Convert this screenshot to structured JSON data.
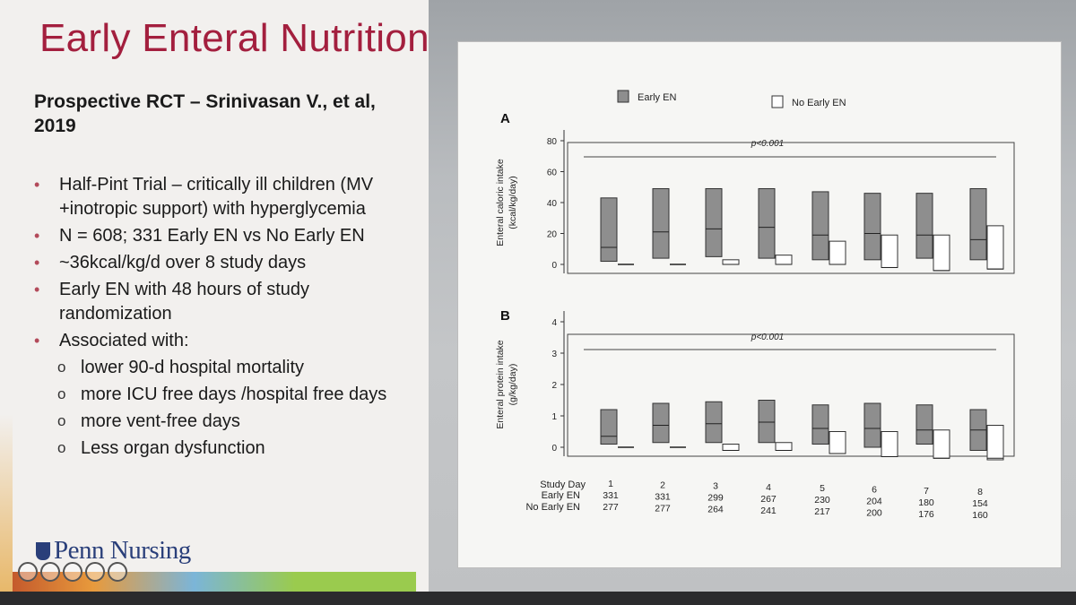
{
  "slide": {
    "title": "Early Enteral Nutrition",
    "subtitle": "Prospective RCT – Srinivasan V., et al, 2019",
    "bullets": [
      "Half-Pint Trial – critically ill children (MV +inotropic support) with hyperglycemia",
      "N = 608; 331 Early EN vs No Early EN",
      "~36kcal/kg/d over 8 study days",
      "Early EN with 48 hours of study randomization",
      "Associated with:"
    ],
    "sub_bullets": [
      "lower 90-d hospital mortality",
      "more ICU free days /hospital free days",
      "more vent-free days",
      "Less organ dysfunction"
    ],
    "logo": "Penn Nursing"
  },
  "colors": {
    "title": "#a31f3e",
    "early_box": "#8e8e8e",
    "no_early_box": "#ffffff",
    "logo": "#2a3f7a"
  },
  "chart_data": [
    {
      "type": "box",
      "panel": "A",
      "ylabel": "Enteral caloric intake (kcal/kg/day)",
      "ylim": [
        0,
        80
      ],
      "yticks": [
        "0",
        "20",
        "40",
        "60",
        "80"
      ],
      "annotation": "p<0.001",
      "legend": [
        "Early EN",
        "No Early EN"
      ],
      "categories": [
        "1",
        "2",
        "3",
        "4",
        "5",
        "6",
        "7",
        "8"
      ],
      "series": [
        {
          "name": "Early EN",
          "q1": [
            2,
            4,
            5,
            4,
            3,
            3,
            4,
            3
          ],
          "median": [
            11,
            21,
            23,
            24,
            19,
            20,
            19,
            16
          ],
          "q3": [
            43,
            49,
            49,
            49,
            47,
            46,
            46,
            49
          ]
        },
        {
          "name": "No Early EN",
          "q1": [
            0,
            0,
            0,
            0,
            0,
            -2,
            -4,
            -3
          ],
          "median": [
            0,
            0,
            0,
            0,
            0,
            -2,
            -4,
            -3
          ],
          "q3": [
            0,
            0,
            3,
            6,
            15,
            19,
            19,
            25
          ]
        }
      ]
    },
    {
      "type": "box",
      "panel": "B",
      "ylabel": "Enteral protein intake (g/kg/day)",
      "ylim": [
        0,
        4
      ],
      "yticks": [
        "0",
        "1",
        "2",
        "3",
        "4"
      ],
      "annotation": "p<0.001",
      "categories": [
        "1",
        "2",
        "3",
        "4",
        "5",
        "6",
        "7",
        "8"
      ],
      "series": [
        {
          "name": "Early EN",
          "q1": [
            0.1,
            0.15,
            0.15,
            0.15,
            0.1,
            0.0,
            0.1,
            -0.1
          ],
          "median": [
            0.35,
            0.7,
            0.75,
            0.8,
            0.6,
            0.6,
            0.55,
            0.55
          ],
          "q3": [
            1.2,
            1.4,
            1.45,
            1.5,
            1.35,
            1.4,
            1.35,
            1.2
          ]
        },
        {
          "name": "No Early EN",
          "q1": [
            0,
            0,
            -0.1,
            -0.1,
            -0.2,
            -0.3,
            -0.35,
            -0.4
          ],
          "median": [
            0,
            0,
            -0.1,
            -0.1,
            -0.2,
            -0.3,
            -0.35,
            -0.35
          ],
          "q3": [
            0,
            0,
            0.1,
            0.15,
            0.5,
            0.5,
            0.55,
            0.7
          ]
        }
      ]
    }
  ],
  "table": {
    "row_labels": [
      "Study Day",
      "Early EN",
      "No Early EN"
    ],
    "days": [
      "1",
      "2",
      "3",
      "4",
      "5",
      "6",
      "7",
      "8"
    ],
    "early_en": [
      "331",
      "331",
      "299",
      "267",
      "230",
      "204",
      "180",
      "154"
    ],
    "no_early_en": [
      "277",
      "277",
      "264",
      "241",
      "217",
      "200",
      "176",
      "160"
    ]
  }
}
